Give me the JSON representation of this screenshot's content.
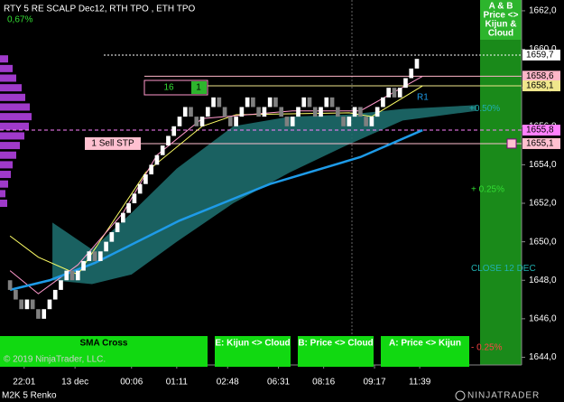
{
  "chart_data": {
    "type": "renko",
    "title": "RTY 5 RE SCALP Dec12, RTH TPO , ETH TPO",
    "subtitle": "0,67%",
    "ylim": [
      1643.6,
      1662.56
    ],
    "yticks": [
      {
        "value": 1644,
        "label": "1644,0"
      },
      {
        "value": 1646,
        "label": "1646,0"
      },
      {
        "value": 1648,
        "label": "1648,0"
      },
      {
        "value": 1650,
        "label": "1650,0"
      },
      {
        "value": 1652,
        "label": "1652,0"
      },
      {
        "value": 1654,
        "label": "1654,0"
      },
      {
        "value": 1656,
        "label": "1656,0"
      },
      {
        "value": 1658,
        "label": "1658,0"
      },
      {
        "value": 1660,
        "label": "1660,0"
      },
      {
        "value": 1662,
        "label": "1662,0"
      }
    ],
    "xticks": [
      {
        "value": 3,
        "label": "22:01"
      },
      {
        "value": 12,
        "label": "13 dec"
      },
      {
        "value": 22,
        "label": "00:06"
      },
      {
        "value": 30,
        "label": "01:11"
      },
      {
        "value": 39,
        "label": "02:48"
      },
      {
        "value": 48,
        "label": "06:31"
      },
      {
        "value": 56,
        "label": "08:16"
      },
      {
        "value": 65,
        "label": "09:17"
      },
      {
        "value": 73,
        "label": "11:39"
      }
    ],
    "xlim": [
      0,
      84
    ],
    "bricks": {
      "up_color": "#ffffff",
      "down_color": "#808080",
      "open": 1648.0,
      "close": [
        1647.5,
        1647,
        1646.5,
        1647,
        1646.5,
        1646,
        1646.5,
        1647,
        1647.5,
        1648,
        1648.5,
        1648,
        1648.5,
        1649,
        1649.5,
        1649,
        1649.5,
        1650,
        1650.5,
        1651,
        1651.5,
        1652,
        1652.5,
        1653,
        1653.5,
        1654,
        1654.5,
        1655,
        1655.5,
        1656,
        1656.5,
        1657,
        1656.5,
        1656,
        1656.5,
        1657,
        1657.5,
        1657,
        1656.5,
        1656,
        1656.5,
        1657,
        1657.5,
        1657,
        1656.5,
        1657,
        1657.5,
        1657,
        1656.5,
        1656,
        1656.5,
        1657,
        1657.5,
        1657,
        1656.5,
        1657,
        1657.5,
        1657,
        1656.5,
        1656,
        1656.5,
        1657,
        1656.5,
        1656,
        1656.5,
        1657,
        1657.5,
        1658,
        1657.5,
        1658,
        1658.5,
        1659,
        1659.5
      ]
    },
    "cloud": {
      "color": "#1d6b6b",
      "x": [
        8,
        15,
        22,
        30,
        40,
        50,
        60,
        70,
        83
      ],
      "upper": [
        1651.0,
        1649.6,
        1651.5,
        1653.8,
        1656.0,
        1656.5,
        1656.6,
        1656.9,
        1657.1
      ],
      "lower": [
        1648.0,
        1647.8,
        1648.3,
        1650.0,
        1652.0,
        1653.6,
        1655.0,
        1656.3,
        1656.8
      ]
    },
    "lines": [
      {
        "color": "#ffff66",
        "x": [
          0,
          5,
          12,
          24,
          34,
          40,
          60,
          64,
          73
        ],
        "values": [
          1650.3,
          1649.2,
          1648.3,
          1653.6,
          1656.0,
          1656.6,
          1656.7,
          1656.5,
          1658.1
        ]
      },
      {
        "color": "#ff99cc",
        "x": [
          0,
          5,
          12,
          20,
          26,
          34,
          50,
          62,
          73
        ],
        "values": [
          1648.5,
          1647.3,
          1648.8,
          1651.5,
          1654.5,
          1656.4,
          1656.8,
          1656.8,
          1658.6
        ]
      },
      {
        "color": "#1e9be8",
        "x": [
          0,
          7,
          15,
          30,
          46,
          62,
          73
        ],
        "values": [
          1647.5,
          1648.0,
          1648.9,
          1651.1,
          1653.0,
          1654.4,
          1655.8
        ]
      }
    ],
    "volume_profile": {
      "color": "#b040e0",
      "levels": [
        1652,
        1652.5,
        1653,
        1653.5,
        1654,
        1654.5,
        1655,
        1655.5,
        1656,
        1656.5,
        1657,
        1657.5,
        1658,
        1658.5,
        1659,
        1659.5
      ],
      "values": [
        8,
        6,
        9,
        12,
        14,
        18,
        22,
        27,
        32,
        35,
        33,
        28,
        24,
        18,
        14,
        9
      ]
    },
    "price_markers": [
      {
        "value": 1659.7,
        "label": "1659,7",
        "color": "#ffffff"
      },
      {
        "value": 1658.6,
        "label": "1658,6",
        "color": "#ffb6c8"
      },
      {
        "value": 1658.1,
        "label": "1658,1",
        "color": "#f0e68c"
      },
      {
        "value": 1655.8,
        "label": "1655,8",
        "color": "#ff80ff"
      },
      {
        "value": 1655.1,
        "label": "1655,1",
        "color": "#ffc0d0"
      }
    ],
    "session_levels": [
      {
        "value": 1656.9,
        "label": "+0.50%",
        "color": "#20b0b0"
      },
      {
        "value": 1652.7,
        "label": "+ 0.25%",
        "color": "#33dd33"
      },
      {
        "value": 1648.6,
        "label": "CLOSE 12 DEC",
        "color": "#20b0b0"
      },
      {
        "value": 1644.5,
        "label": "- 0.25%",
        "color": "#ff4444"
      }
    ],
    "order": {
      "quantity": "16",
      "count": "1",
      "stop": "1 Sell STP"
    },
    "pivot": "R1",
    "strategy_header": [
      "A & B",
      "Price <>",
      "Kijun &",
      "Cloud"
    ],
    "buttons": [
      "SMA  Cross",
      "E: Kijun <> Cloud",
      "B: Price <> Cloud",
      "A: Price <> Kijun"
    ],
    "copyright": "© 2019 NinjaTrader, LLC.",
    "instrument": "M2K 5 Renko",
    "brand": "NINJATRADER"
  }
}
